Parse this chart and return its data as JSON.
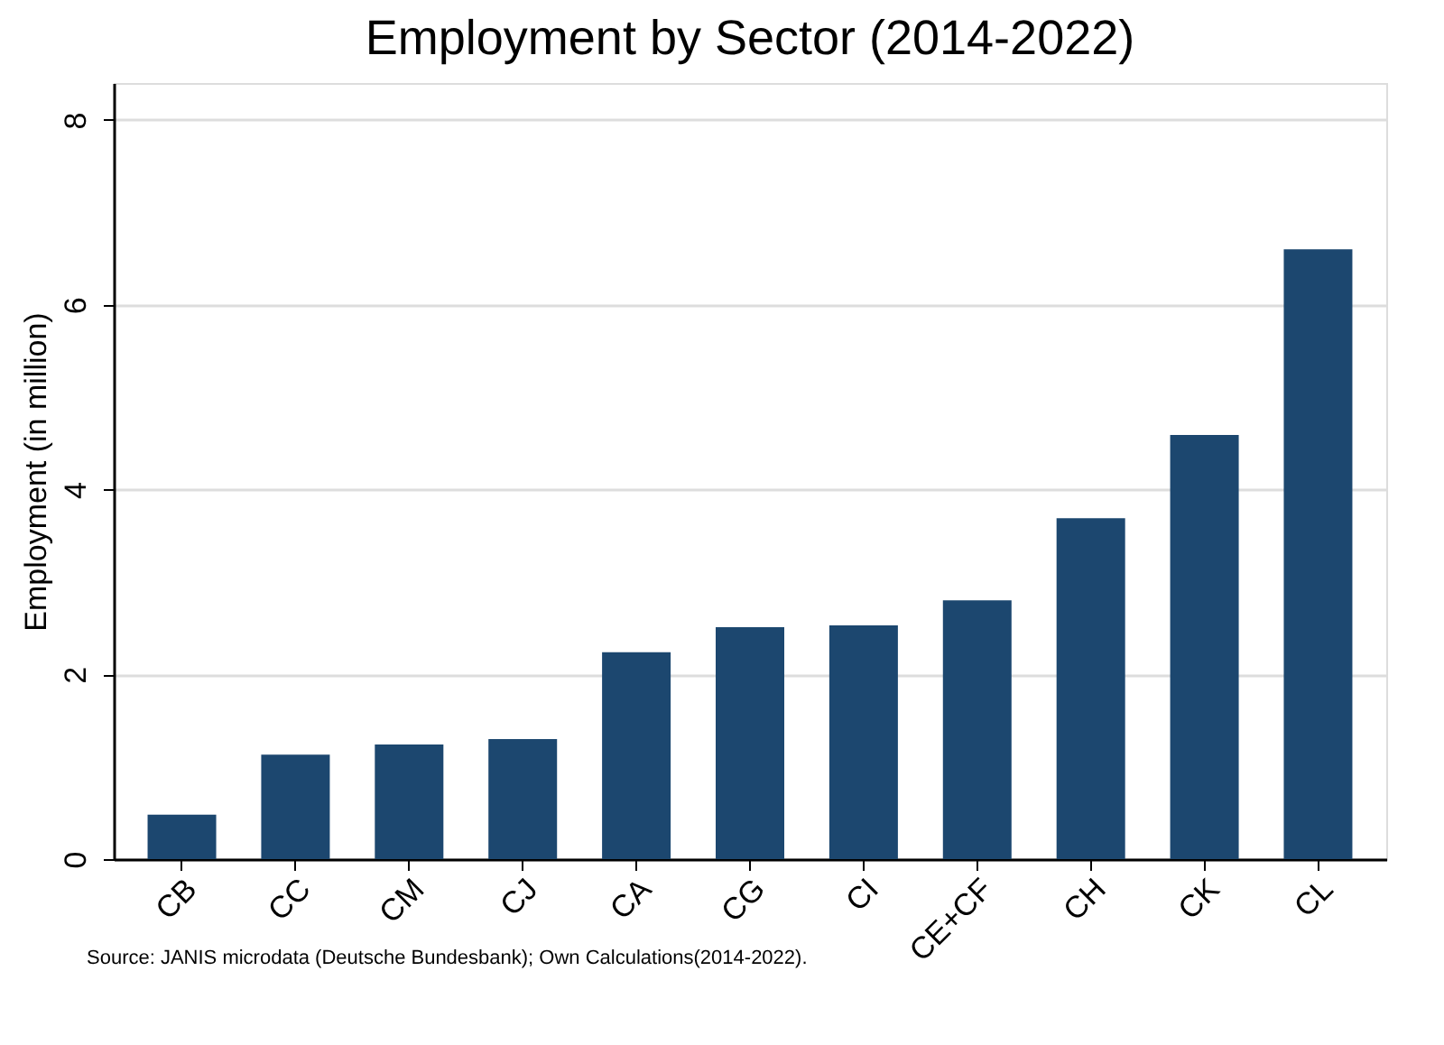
{
  "chart_data": {
    "type": "bar",
    "title": "Employment by Sector (2014-2022)",
    "ylabel": "Employment (in million)",
    "categories": [
      "CB",
      "CC",
      "CM",
      "CJ",
      "CA",
      "CG",
      "CI",
      "CE+CF",
      "CH",
      "CK",
      "CL"
    ],
    "values": [
      0.48,
      1.13,
      1.24,
      1.3,
      2.24,
      2.51,
      2.53,
      2.8,
      3.69,
      4.59,
      6.6
    ],
    "color": "#1c476f",
    "ylim": [
      0,
      8.4
    ],
    "yticks": [
      0,
      2,
      4,
      6,
      8
    ],
    "grid": "y",
    "annotations": [
      "Source: JANIS microdata (Deutsche Bundesbank); Own Calculations(2014-2022)."
    ]
  }
}
